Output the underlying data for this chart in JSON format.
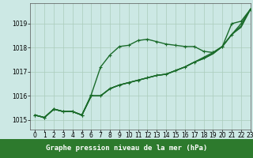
{
  "title": "Graphe pression niveau de la mer (hPa)",
  "bg_color": "#cce8e4",
  "grid_color": "#aaccbb",
  "line_color": "#1a6b2a",
  "xlim": [
    -0.5,
    23
  ],
  "ylim": [
    1014.6,
    1019.85
  ],
  "yticks": [
    1015,
    1016,
    1017,
    1018,
    1019
  ],
  "ytick_labels": [
    "1015",
    "1016",
    "1017",
    "1018",
    "1019"
  ],
  "xticks": [
    0,
    1,
    2,
    3,
    4,
    5,
    6,
    7,
    8,
    9,
    10,
    11,
    12,
    13,
    14,
    15,
    16,
    17,
    18,
    19,
    20,
    21,
    22,
    23
  ],
  "series": [
    {
      "y": [
        1015.2,
        1015.1,
        1015.45,
        1015.35,
        1015.35,
        1015.2,
        1016.05,
        1017.2,
        1017.7,
        1018.05,
        1018.1,
        1018.3,
        1018.35,
        1018.25,
        1018.15,
        1018.1,
        1018.05,
        1018.05,
        1017.85,
        1017.8,
        1018.05,
        1019.0,
        1019.1,
        1019.6
      ],
      "marker": true,
      "lw": 1.0
    },
    {
      "y": [
        1015.2,
        1015.1,
        1015.45,
        1015.35,
        1015.35,
        1015.2,
        1016.0,
        1016.0,
        1016.3,
        1016.45,
        1016.55,
        1016.65,
        1016.75,
        1016.85,
        1016.9,
        1017.05,
        1017.2,
        1017.4,
        1017.6,
        1017.8,
        1018.05,
        1018.55,
        1019.0,
        1019.6
      ],
      "marker": true,
      "lw": 1.0
    },
    {
      "y": [
        1015.2,
        1015.1,
        1015.45,
        1015.35,
        1015.35,
        1015.2,
        1016.0,
        1016.0,
        1016.3,
        1016.45,
        1016.55,
        1016.65,
        1016.75,
        1016.85,
        1016.9,
        1017.05,
        1017.2,
        1017.4,
        1017.55,
        1017.75,
        1018.05,
        1018.55,
        1018.9,
        1019.6
      ],
      "marker": false,
      "lw": 1.0
    },
    {
      "y": [
        1015.2,
        1015.1,
        1015.45,
        1015.35,
        1015.35,
        1015.2,
        1016.0,
        1016.0,
        1016.3,
        1016.45,
        1016.55,
        1016.65,
        1016.75,
        1016.85,
        1016.9,
        1017.05,
        1017.2,
        1017.4,
        1017.55,
        1017.75,
        1018.05,
        1018.55,
        1018.85,
        1019.6
      ],
      "marker": false,
      "lw": 1.0
    }
  ],
  "marker_size": 2.5,
  "label_fontsize": 6.5,
  "tick_fontsize": 5.5,
  "bottom_bar_color": "#2d7a2d",
  "bottom_bar_height": 0.12
}
